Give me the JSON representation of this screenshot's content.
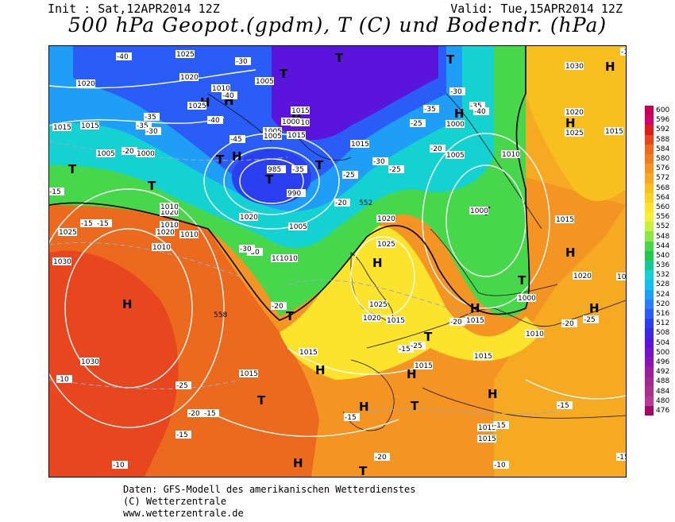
{
  "header": {
    "init": "Init : Sat,12APR2014 12Z",
    "valid": "Valid: Tue,15APR2014 12Z",
    "title": "500 hPa Geopot.(gpdm), T (C) und Bodendr. (hPa)"
  },
  "legend": {
    "unit": "gpdm",
    "values": [
      "600",
      "596",
      "592",
      "588",
      "584",
      "580",
      "576",
      "572",
      "568",
      "564",
      "560",
      "556",
      "552",
      "548",
      "544",
      "540",
      "536",
      "532",
      "528",
      "524",
      "520",
      "516",
      "512",
      "508",
      "504",
      "500",
      "496",
      "492",
      "488",
      "484",
      "480",
      "476"
    ],
    "colors": [
      "#c80050",
      "#d2006e",
      "#e01a1a",
      "#e8461e",
      "#ec6a1e",
      "#f07e20",
      "#f49422",
      "#f6aa22",
      "#f8c01e",
      "#fad222",
      "#fce42c",
      "#f4f032",
      "#c8f03c",
      "#8ce646",
      "#46d84a",
      "#20c850",
      "#14c898",
      "#14d2d2",
      "#14beee",
      "#1e9ef6",
      "#2a7ef8",
      "#2a5cf8",
      "#2a40f0",
      "#3a28e6",
      "#5a14dc",
      "#7814c8",
      "#8c14b4",
      "#9c1e9c",
      "#a02890",
      "#a8328a",
      "#b43c96",
      "#a00a64"
    ]
  },
  "map_labels": {
    "pressure_highs": [
      "H",
      "H",
      "H",
      "H",
      "H",
      "H",
      "H",
      "H",
      "H",
      "H",
      "H",
      "H",
      "H",
      "H",
      "H",
      "H",
      "H"
    ],
    "pressure_lows": [
      "T",
      "T",
      "T",
      "T",
      "T",
      "T",
      "T",
      "T",
      "T",
      "T",
      "T",
      "T",
      "T",
      "T",
      "T"
    ],
    "isobars": [
      "1025",
      "1020",
      "1015",
      "1005",
      "1000",
      "1010",
      "1005",
      "1015",
      "1020",
      "1025",
      "1030",
      "1025",
      "1020",
      "1010",
      "1015",
      "1015",
      "1020",
      "1025",
      "1000",
      "990",
      "985",
      "1015",
      "1010",
      "1005",
      "1000",
      "1015",
      "1010",
      "1020",
      "1010",
      "1020",
      "1025",
      "1030",
      "1000",
      "1005",
      "1005",
      "1015",
      "1020",
      "1025",
      "1030",
      "1015",
      "1010",
      "1010",
      "1015",
      "1025",
      "1020",
      "1015",
      "1015",
      "1015",
      "1015",
      "1015",
      "1015",
      "1020",
      "1010",
      "1010",
      "1005",
      "1000",
      "1010"
    ],
    "temperatures": [
      "-40",
      "-30",
      "-40",
      "-35",
      "-35",
      "-30",
      "-20",
      "-25",
      "-40",
      "-45",
      "-35",
      "-30",
      "-25",
      "-20",
      "-15",
      "-30",
      "-15",
      "-15",
      "-25",
      "-20",
      "-15",
      "-10",
      "-20",
      "-15",
      "-15",
      "-10",
      "-10",
      "-15",
      "-30",
      "-35",
      "-25",
      "-20",
      "-15",
      "-25",
      "-20",
      "-15",
      "-20",
      "-15",
      "-10",
      "-25",
      "-20",
      "-35",
      "-40",
      "-30"
    ],
    "geopotential": [
      "552",
      "558"
    ]
  },
  "footer": {
    "line1": "Daten: GFS-Modell des amerikanischen Wetterdienstes",
    "line2": "(C) Wetterzentrale",
    "line3": "www.wetterzentrale.de"
  }
}
